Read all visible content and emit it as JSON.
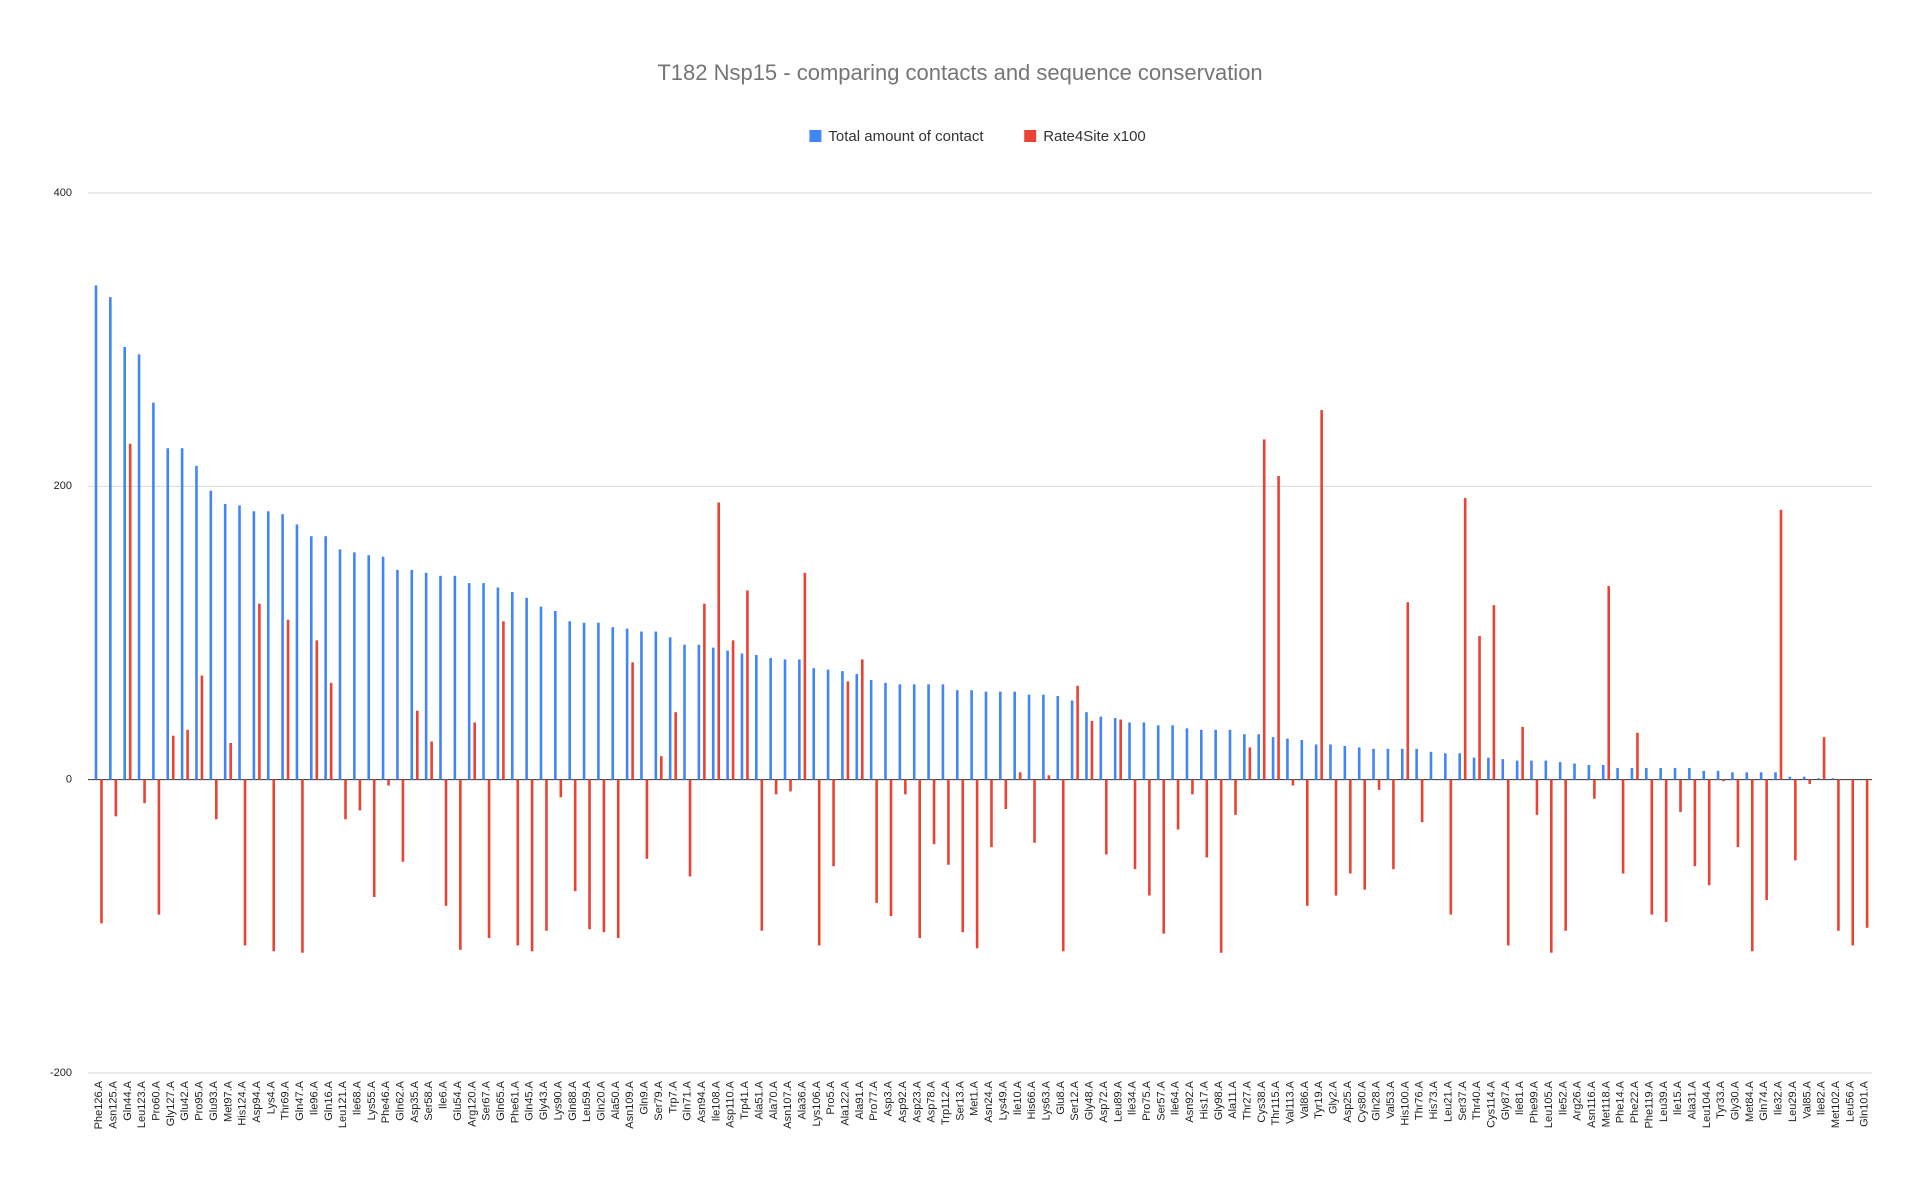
{
  "chart_data": {
    "type": "bar",
    "title": "T182 Nsp15 - comparing contacts and sequence conservation",
    "categories": [
      "Phe126.A",
      "Asn125.A",
      "Gln44.A",
      "Leu123.A",
      "Pro60.A",
      "Gly127.A",
      "Glu42.A",
      "Pro95.A",
      "Glu93.A",
      "Met97.A",
      "His124.A",
      "Asp94.A",
      "Lys4.A",
      "Thr69.A",
      "Gln47.A",
      "Ile96.A",
      "Gln16.A",
      "Leu121.A",
      "Ile68.A",
      "Lys55.A",
      "Phe46.A",
      "Gln62.A",
      "Asp35.A",
      "Ser58.A",
      "Ile6.A",
      "Glu54.A",
      "Arg120.A",
      "Ser67.A",
      "Gln65.A",
      "Phe61.A",
      "Gln45.A",
      "Gly43.A",
      "Lys90.A",
      "Gln88.A",
      "Leu59.A",
      "Gln20.A",
      "Ala50.A",
      "Asn109.A",
      "Gln9.A",
      "Ser79.A",
      "Trp7.A",
      "Gln71.A",
      "Asn94.A",
      "Ile108.A",
      "Asp110.A",
      "Trp41.A",
      "Ala51.A",
      "Ala70.A",
      "Asn107.A",
      "Ala36.A",
      "Lys106.A",
      "Pro5.A",
      "Ala122.A",
      "Ala91.A",
      "Pro77.A",
      "Asp3.A",
      "Asp92.A",
      "Asp23.A",
      "Asp78.A",
      "Trp112.A",
      "Ser13.A",
      "Met1.A",
      "Asn24.A",
      "Lys49.A",
      "Ile10.A",
      "His66.A",
      "Lys63.A",
      "Glu8.A",
      "Ser12.A",
      "Gly48.A",
      "Asp72.A",
      "Leu89.A",
      "Ile34.A",
      "Pro75.A",
      "Ser57.A",
      "Ile64.A",
      "Asn92.A",
      "His17.A",
      "Gly98.A",
      "Ala11.A",
      "Thr27.A",
      "Cys38.A",
      "Thr115.A",
      "Val113.A",
      "Val86.A",
      "Tyr19.A",
      "Gly2.A",
      "Asp25.A",
      "Cys80.A",
      "Gln28.A",
      "Val53.A",
      "His100.A",
      "Thr76.A",
      "His73.A",
      "Leu21.A",
      "Ser37.A",
      "Thr40.A",
      "Cys114.A",
      "Gly87.A",
      "Ile81.A",
      "Phe99.A",
      "Leu105.A",
      "Ile52.A",
      "Arg26.A",
      "Asn116.A",
      "Met118.A",
      "Phe14.A",
      "Phe22.A",
      "Phe119.A",
      "Leu39.A",
      "Ile15.A",
      "Ala31.A",
      "Leu104.A",
      "Tyr33.A",
      "Gly30.A",
      "Met84.A",
      "Gln74.A",
      "Ile32.A",
      "Leu29.A",
      "Val85.A",
      "Ile82.A",
      "Met102.A",
      "Leu56.A",
      "Gln101.A"
    ],
    "series": [
      {
        "name": "Total amount of contact",
        "color": "#4285f4",
        "values": [
          337,
          329,
          295,
          290,
          257,
          226,
          226,
          214,
          197,
          188,
          187,
          183,
          183,
          181,
          174,
          166,
          166,
          157,
          155,
          153,
          152,
          143,
          143,
          141,
          139,
          139,
          134,
          134,
          131,
          128,
          124,
          118,
          115,
          108,
          107,
          107,
          104,
          103,
          101,
          101,
          97,
          92,
          92,
          90,
          88,
          86,
          85,
          83,
          82,
          82,
          76,
          75,
          74,
          72,
          68,
          66,
          65,
          65,
          65,
          65,
          61,
          61,
          60,
          60,
          60,
          58,
          58,
          57,
          54,
          46,
          43,
          42,
          39,
          39,
          37,
          37,
          35,
          34,
          34,
          34,
          31,
          31,
          29,
          28,
          27,
          24,
          24,
          23,
          22,
          21,
          21,
          21,
          21,
          19,
          18,
          18,
          15,
          15,
          14,
          13,
          13,
          13,
          12,
          11,
          10,
          10,
          8,
          8,
          8,
          8,
          8,
          8,
          6,
          6,
          5,
          5,
          5,
          5,
          2,
          2,
          1,
          1,
          0,
          0
        ]
      },
      {
        "name": "Rate4Site x100",
        "color": "#ea4335",
        "values": [
          -98,
          -25,
          229,
          -16,
          -92,
          30,
          34,
          71,
          -27,
          25,
          -113,
          120,
          -117,
          109,
          -118,
          95,
          66,
          -27,
          -21,
          -80,
          -4,
          -56,
          47,
          26,
          -86,
          -116,
          39,
          -108,
          108,
          -113,
          -117,
          -103,
          -12,
          -76,
          -102,
          -104,
          -108,
          80,
          -54,
          16,
          46,
          -66,
          120,
          189,
          95,
          129,
          -103,
          -10,
          -8,
          141,
          -113,
          -59,
          67,
          82,
          -84,
          -93,
          -10,
          -108,
          -44,
          -58,
          -104,
          -115,
          -46,
          -20,
          5,
          -43,
          3,
          -117,
          64,
          40,
          -51,
          41,
          -61,
          -79,
          -105,
          -34,
          -10,
          -53,
          -118,
          -24,
          22,
          232,
          207,
          -4,
          -86,
          252,
          -79,
          -64,
          -75,
          -7,
          -61,
          121,
          -29,
          0,
          -92,
          192,
          98,
          119,
          -113,
          36,
          -24,
          -118,
          -103,
          0,
          -13,
          132,
          -64,
          32,
          -92,
          -97,
          -22,
          -59,
          -72,
          -1,
          -46,
          -117,
          -82,
          184,
          -55,
          -3,
          29,
          -103,
          -113,
          -101
        ]
      }
    ],
    "ylim": [
      -200,
      400
    ],
    "yticks": [
      -200,
      0,
      200,
      400
    ],
    "grid": true
  }
}
